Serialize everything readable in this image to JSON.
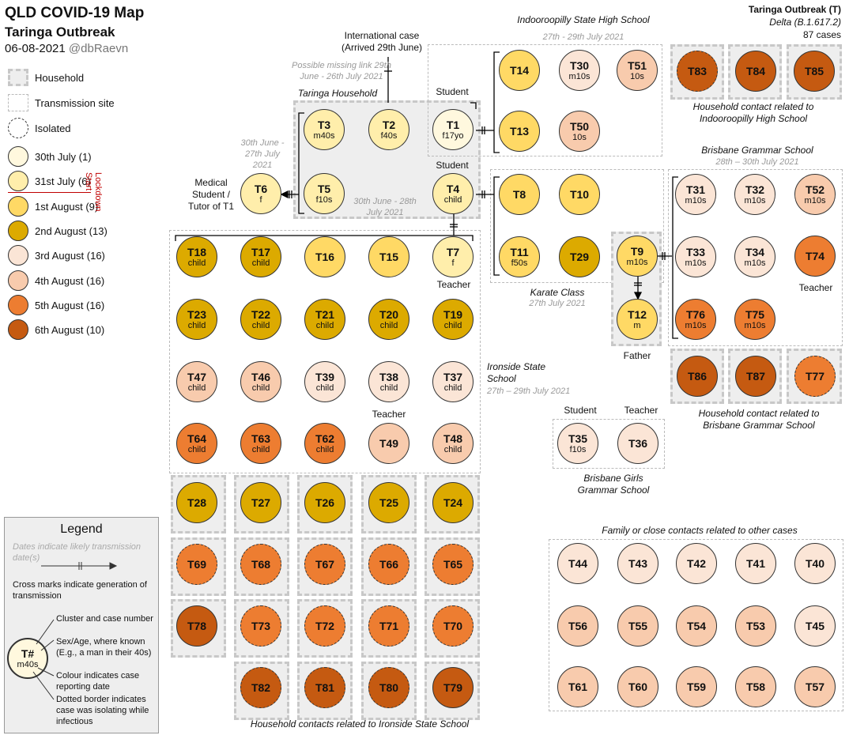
{
  "title": {
    "line1": "QLD COVID-19 Map",
    "line2": "Taringa Outbreak",
    "date": "06-08-2021",
    "handle": "@dbRaevn"
  },
  "header": {
    "line1": "Taringa Outbreak (T)",
    "line2": "Delta (B.1.617.2)",
    "line3": "87 cases"
  },
  "colors": {
    "d30jul": "#fff8de",
    "d31jul": "#ffeeab",
    "d1aug": "#ffd965",
    "d2aug": "#dcaa00",
    "d3aug": "#fbe5d6",
    "d4aug": "#f8cbad",
    "d5aug": "#ed7d31",
    "d6aug": "#c55a11"
  },
  "key": {
    "household": "Household",
    "transmission": "Transmission site",
    "isolated": "Isolated",
    "lockdown": "Lockdown Start",
    "dates": [
      {
        "c": "d30jul",
        "label": "30th July (1)"
      },
      {
        "c": "d31jul",
        "label": "31st July (6)"
      },
      {
        "c": "d1aug",
        "label": "1st August (9)"
      },
      {
        "c": "d2aug",
        "label": "2nd August (13)"
      },
      {
        "c": "d3aug",
        "label": "3rd August (16)"
      },
      {
        "c": "d4aug",
        "label": "4th August (16)"
      },
      {
        "c": "d5aug",
        "label": "5th August (16)"
      },
      {
        "c": "d6aug",
        "label": "6th August (10)"
      }
    ]
  },
  "legend": {
    "title": "Legend",
    "dates_note": "Dates indicate likely transmission date(s)",
    "cross_note": "Cross marks indicate generation of transmission",
    "cluster_note": "Cluster and case number",
    "sex_note": "Sex/Age, where known (E.g., a man in their 40s)",
    "colour_note": "Colour indicates case reporting date",
    "dotted_note": "Dotted border indicates case was isolating while infectious",
    "sample_id": "T#",
    "sample_sub": "m40s"
  },
  "labels": {
    "international": "International case (Arrived 29th June)",
    "missing_link": "Possible missing link 29th June - 26th July 2021",
    "taringa_household": "Taringa Household",
    "student1": "Student",
    "student2": "Student",
    "medical": "Medical Student / Tutor of T1",
    "d_t6": "30th June - 27th July 2021",
    "d_household": "30th June - 28th July 2021",
    "indooroopilly": "Indooroopilly State High School",
    "d_indooroopilly": "27th - 29th July 2021",
    "hh_indooroopilly": "Household contact related to Indooroopilly High School",
    "bgs": "Brisbane Grammar School",
    "d_bgs": "28th – 30th July 2021",
    "hh_bgs": "Household contact related to Brisbane Grammar School",
    "karate": "Karate Class",
    "d_karate": "27th July 2021",
    "father": "Father",
    "teacher_t7": "Teacher",
    "teacher_t74": "Teacher",
    "teacher_t49": "Teacher",
    "ironside": "Ironside State School",
    "d_ironside": "27th – 29th July 2021",
    "bggs_student": "Student",
    "bggs_teacher": "Teacher",
    "bggs": "Brisbane Girls Grammar School",
    "hh_ironside": "Household contacts related to Ironside State School",
    "family": "Family or close contacts related to other cases"
  },
  "cases": [
    {
      "id": "T3",
      "sub": "m40s",
      "c": "d31jul"
    },
    {
      "id": "T2",
      "sub": "f40s",
      "c": "d31jul"
    },
    {
      "id": "T1",
      "sub": "f17yo",
      "c": "d30jul"
    },
    {
      "id": "T6",
      "sub": "f",
      "c": "d31jul"
    },
    {
      "id": "T5",
      "sub": "f10s",
      "c": "d31jul"
    },
    {
      "id": "T4",
      "sub": "child",
      "c": "d31jul"
    },
    {
      "id": "T14",
      "sub": "",
      "c": "d1aug"
    },
    {
      "id": "T30",
      "sub": "m10s",
      "c": "d3aug"
    },
    {
      "id": "T51",
      "sub": "10s",
      "c": "d4aug"
    },
    {
      "id": "T13",
      "sub": "",
      "c": "d1aug"
    },
    {
      "id": "T50",
      "sub": "10s",
      "c": "d4aug"
    },
    {
      "id": "T83",
      "sub": "",
      "c": "d6aug",
      "dot": true
    },
    {
      "id": "T84",
      "sub": "",
      "c": "d6aug"
    },
    {
      "id": "T85",
      "sub": "",
      "c": "d6aug"
    },
    {
      "id": "T8",
      "sub": "",
      "c": "d1aug"
    },
    {
      "id": "T10",
      "sub": "",
      "c": "d1aug"
    },
    {
      "id": "T11",
      "sub": "f50s",
      "c": "d1aug"
    },
    {
      "id": "T29",
      "sub": "",
      "c": "d2aug"
    },
    {
      "id": "T9",
      "sub": "m10s",
      "c": "d1aug"
    },
    {
      "id": "T12",
      "sub": "m",
      "c": "d1aug"
    },
    {
      "id": "T31",
      "sub": "m10s",
      "c": "d3aug"
    },
    {
      "id": "T32",
      "sub": "m10s",
      "c": "d3aug"
    },
    {
      "id": "T52",
      "sub": "m10s",
      "c": "d4aug"
    },
    {
      "id": "T33",
      "sub": "m10s",
      "c": "d3aug"
    },
    {
      "id": "T34",
      "sub": "m10s",
      "c": "d3aug"
    },
    {
      "id": "T74",
      "sub": "",
      "c": "d5aug"
    },
    {
      "id": "T76",
      "sub": "m10s",
      "c": "d5aug"
    },
    {
      "id": "T75",
      "sub": "m10s",
      "c": "d5aug"
    },
    {
      "id": "T86",
      "sub": "",
      "c": "d6aug"
    },
    {
      "id": "T87",
      "sub": "",
      "c": "d6aug"
    },
    {
      "id": "T77",
      "sub": "",
      "c": "d5aug",
      "dot": true
    },
    {
      "id": "T18",
      "sub": "child",
      "c": "d2aug"
    },
    {
      "id": "T17",
      "sub": "child",
      "c": "d2aug"
    },
    {
      "id": "T16",
      "sub": "",
      "c": "d1aug"
    },
    {
      "id": "T15",
      "sub": "",
      "c": "d1aug"
    },
    {
      "id": "T7",
      "sub": "f",
      "c": "d31jul"
    },
    {
      "id": "T23",
      "sub": "child",
      "c": "d2aug"
    },
    {
      "id": "T22",
      "sub": "child",
      "c": "d2aug"
    },
    {
      "id": "T21",
      "sub": "child",
      "c": "d2aug"
    },
    {
      "id": "T20",
      "sub": "child",
      "c": "d2aug"
    },
    {
      "id": "T19",
      "sub": "child",
      "c": "d2aug"
    },
    {
      "id": "T47",
      "sub": "child",
      "c": "d4aug"
    },
    {
      "id": "T46",
      "sub": "child",
      "c": "d4aug"
    },
    {
      "id": "T39",
      "sub": "child",
      "c": "d3aug"
    },
    {
      "id": "T38",
      "sub": "child",
      "c": "d3aug"
    },
    {
      "id": "T37",
      "sub": "child",
      "c": "d3aug"
    },
    {
      "id": "T64",
      "sub": "child",
      "c": "d5aug"
    },
    {
      "id": "T63",
      "sub": "child",
      "c": "d5aug"
    },
    {
      "id": "T62",
      "sub": "child",
      "c": "d5aug"
    },
    {
      "id": "T49",
      "sub": "",
      "c": "d4aug"
    },
    {
      "id": "T48",
      "sub": "child",
      "c": "d4aug"
    },
    {
      "id": "T35",
      "sub": "f10s",
      "c": "d3aug"
    },
    {
      "id": "T36",
      "sub": "",
      "c": "d3aug"
    },
    {
      "id": "T28",
      "sub": "",
      "c": "d2aug"
    },
    {
      "id": "T27",
      "sub": "",
      "c": "d2aug"
    },
    {
      "id": "T26",
      "sub": "",
      "c": "d2aug"
    },
    {
      "id": "T25",
      "sub": "",
      "c": "d2aug"
    },
    {
      "id": "T24",
      "sub": "",
      "c": "d2aug"
    },
    {
      "id": "T69",
      "sub": "",
      "c": "d5aug",
      "dot": true
    },
    {
      "id": "T68",
      "sub": "",
      "c": "d5aug",
      "dot": true
    },
    {
      "id": "T67",
      "sub": "",
      "c": "d5aug",
      "dot": true
    },
    {
      "id": "T66",
      "sub": "",
      "c": "d5aug",
      "dot": true
    },
    {
      "id": "T65",
      "sub": "",
      "c": "d5aug",
      "dot": true
    },
    {
      "id": "T78",
      "sub": "",
      "c": "d6aug"
    },
    {
      "id": "T73",
      "sub": "",
      "c": "d5aug",
      "dot": true
    },
    {
      "id": "T72",
      "sub": "",
      "c": "d5aug",
      "dot": true
    },
    {
      "id": "T71",
      "sub": "",
      "c": "d5aug",
      "dot": true
    },
    {
      "id": "T70",
      "sub": "",
      "c": "d5aug",
      "dot": true
    },
    {
      "id": "T82",
      "sub": "",
      "c": "d6aug",
      "dot": true
    },
    {
      "id": "T81",
      "sub": "",
      "c": "d6aug",
      "dot": true
    },
    {
      "id": "T80",
      "sub": "",
      "c": "d6aug",
      "dot": true
    },
    {
      "id": "T79",
      "sub": "",
      "c": "d6aug"
    },
    {
      "id": "T44",
      "sub": "",
      "c": "d3aug"
    },
    {
      "id": "T43",
      "sub": "",
      "c": "d3aug"
    },
    {
      "id": "T42",
      "sub": "",
      "c": "d3aug"
    },
    {
      "id": "T41",
      "sub": "",
      "c": "d3aug"
    },
    {
      "id": "T40",
      "sub": "",
      "c": "d3aug"
    },
    {
      "id": "T56",
      "sub": "",
      "c": "d4aug"
    },
    {
      "id": "T55",
      "sub": "",
      "c": "d4aug"
    },
    {
      "id": "T54",
      "sub": "",
      "c": "d4aug"
    },
    {
      "id": "T53",
      "sub": "",
      "c": "d4aug"
    },
    {
      "id": "T45",
      "sub": "",
      "c": "d3aug"
    },
    {
      "id": "T61",
      "sub": "",
      "c": "d4aug"
    },
    {
      "id": "T60",
      "sub": "",
      "c": "d4aug"
    },
    {
      "id": "T59",
      "sub": "",
      "c": "d4aug"
    },
    {
      "id": "T58",
      "sub": "",
      "c": "d4aug"
    },
    {
      "id": "T57",
      "sub": "",
      "c": "d4aug"
    }
  ]
}
